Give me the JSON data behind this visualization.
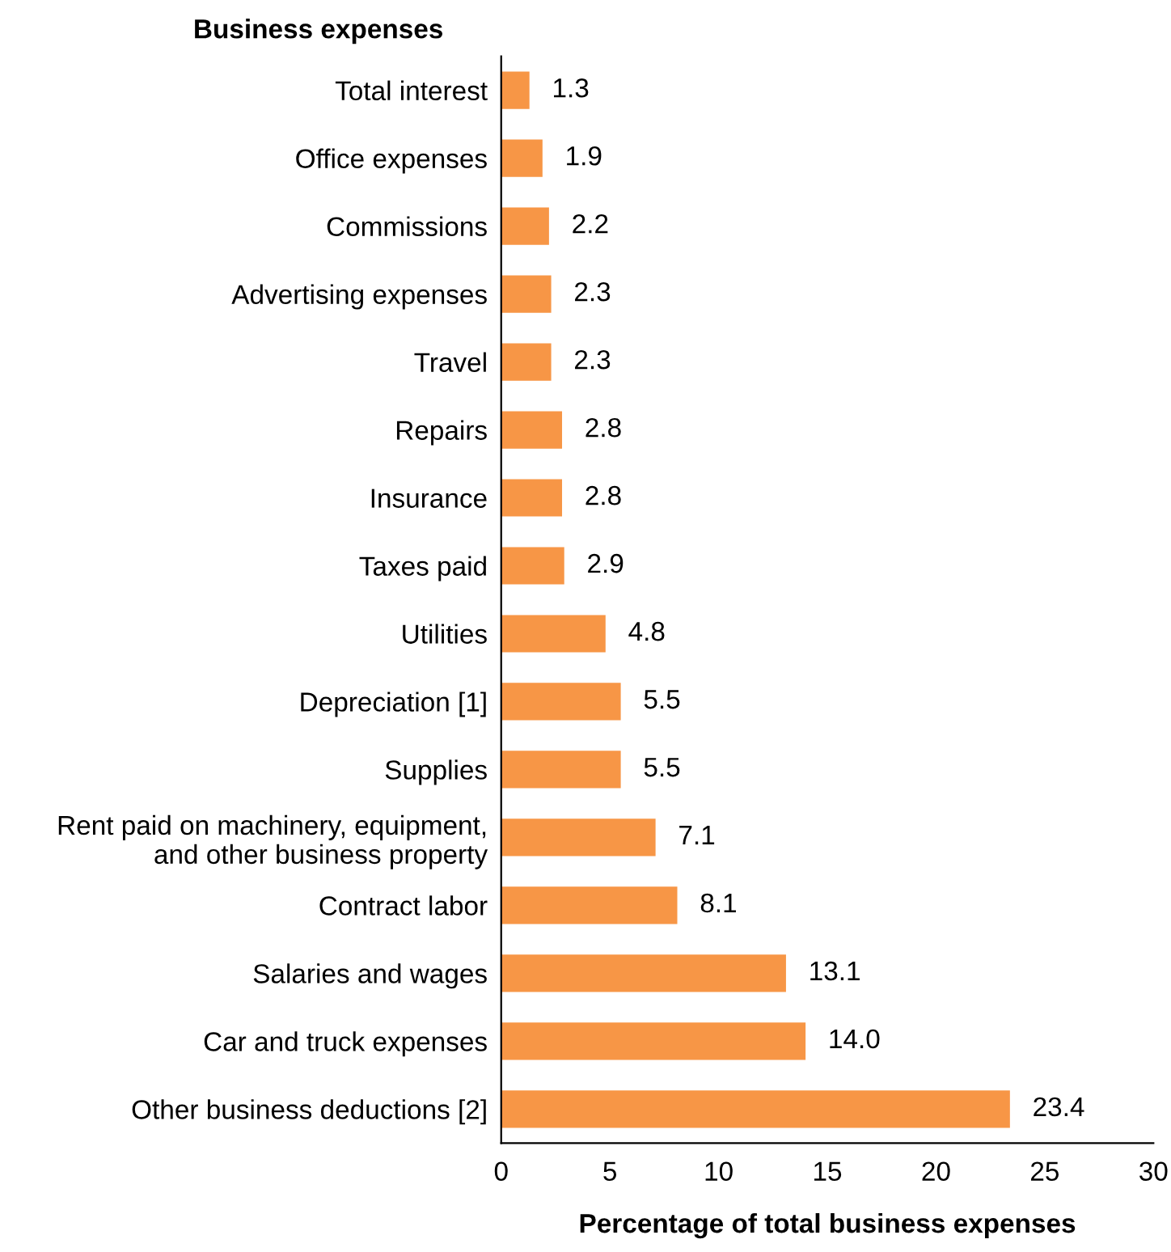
{
  "chart_data": {
    "type": "bar",
    "orientation": "horizontal",
    "ylabel": "Business expenses",
    "xlabel": "Percentage of total business expenses",
    "categories": [
      "Total interest",
      "Office expenses",
      "Commissions",
      "Advertising expenses",
      "Travel",
      "Repairs",
      "Insurance",
      "Taxes paid",
      "Utilities",
      "Depreciation [1]",
      "Supplies",
      "Rent paid on machinery, equipment,\nand other business property",
      "Contract labor",
      "Salaries and wages",
      "Car and truck expenses",
      "Other business deductions [2]"
    ],
    "values": [
      1.3,
      1.9,
      2.2,
      2.3,
      2.3,
      2.8,
      2.8,
      2.9,
      4.8,
      5.5,
      5.5,
      7.1,
      8.1,
      13.1,
      14.0,
      23.4
    ],
    "value_labels": [
      "1.3",
      "1.9",
      "2.2",
      "2.3",
      "2.3",
      "2.8",
      "2.8",
      "2.9",
      "4.8",
      "5.5",
      "5.5",
      "7.1",
      "8.1",
      "13.1",
      "14.0",
      "23.4"
    ],
    "color": "#f79646",
    "xlim": [
      0,
      30
    ],
    "xticks": [
      0,
      5,
      10,
      15,
      20,
      25,
      30
    ],
    "grid": false,
    "legend": false
  }
}
